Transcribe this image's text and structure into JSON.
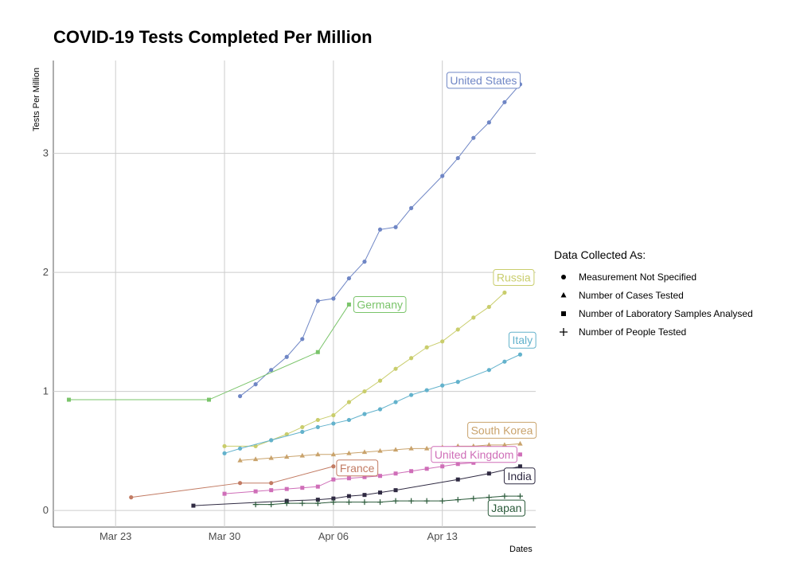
{
  "chart_data": {
    "type": "line",
    "title": "COVID-19 Tests Completed Per Million",
    "ylabel": "Tests Per Million",
    "xlabel": "Dates",
    "xlim": [
      "2020-03-19",
      "2020-04-19"
    ],
    "ylim": [
      -0.14,
      3.78
    ],
    "x_ticks": [
      {
        "date": "2020-03-23",
        "label": "Mar 23"
      },
      {
        "date": "2020-03-30",
        "label": "Mar 30"
      },
      {
        "date": "2020-04-06",
        "label": "Apr 06"
      },
      {
        "date": "2020-04-13",
        "label": "Apr 13"
      }
    ],
    "y_ticks": [
      0,
      1,
      2,
      3
    ],
    "grid": true,
    "legend": {
      "title": "Data Collected As:",
      "position": "right",
      "entries": [
        {
          "label": "Measurement Not Specified",
          "shape": "circle"
        },
        {
          "label": "Number of Cases Tested",
          "shape": "triangle"
        },
        {
          "label": "Number of Laboratory Samples Analysed",
          "shape": "square"
        },
        {
          "label": "Number of People Tested",
          "shape": "plus"
        }
      ]
    },
    "series": [
      {
        "name": "United States",
        "color": "#6f86c5",
        "shape": "circle",
        "x": [
          "2020-03-31",
          "2020-04-01",
          "2020-04-02",
          "2020-04-03",
          "2020-04-04",
          "2020-04-05",
          "2020-04-06",
          "2020-04-07",
          "2020-04-08",
          "2020-04-09",
          "2020-04-10",
          "2020-04-11",
          "2020-04-13",
          "2020-04-14",
          "2020-04-15",
          "2020-04-16",
          "2020-04-17",
          "2020-04-18"
        ],
        "y": [
          0.96,
          1.06,
          1.18,
          1.29,
          1.44,
          1.76,
          1.78,
          1.95,
          2.09,
          2.36,
          2.38,
          2.54,
          2.81,
          2.96,
          3.13,
          3.26,
          3.43,
          3.58
        ]
      },
      {
        "name": "Germany",
        "color": "#7ac46a",
        "shape": "square",
        "x": [
          "2020-03-20",
          "2020-03-29",
          "2020-04-05",
          "2020-04-07"
        ],
        "y": [
          0.93,
          0.93,
          1.33,
          1.73
        ]
      },
      {
        "name": "Russia",
        "color": "#c9cd6c",
        "shape": "circle",
        "x": [
          "2020-03-30",
          "2020-04-01",
          "2020-04-02",
          "2020-04-03",
          "2020-04-04",
          "2020-04-05",
          "2020-04-06",
          "2020-04-07",
          "2020-04-08",
          "2020-04-09",
          "2020-04-10",
          "2020-04-11",
          "2020-04-12",
          "2020-04-13",
          "2020-04-14",
          "2020-04-15",
          "2020-04-16",
          "2020-04-17"
        ],
        "y": [
          0.54,
          0.54,
          0.59,
          0.64,
          0.7,
          0.76,
          0.8,
          0.91,
          1.0,
          1.09,
          1.19,
          1.28,
          1.37,
          1.42,
          1.52,
          1.62,
          1.71,
          1.83
        ]
      },
      {
        "name": "Italy",
        "color": "#63b2cc",
        "shape": "circle",
        "x": [
          "2020-03-30",
          "2020-03-31",
          "2020-04-02",
          "2020-04-04",
          "2020-04-05",
          "2020-04-06",
          "2020-04-07",
          "2020-04-08",
          "2020-04-09",
          "2020-04-10",
          "2020-04-11",
          "2020-04-12",
          "2020-04-13",
          "2020-04-14",
          "2020-04-16",
          "2020-04-17",
          "2020-04-18"
        ],
        "y": [
          0.48,
          0.52,
          0.59,
          0.66,
          0.7,
          0.73,
          0.76,
          0.81,
          0.85,
          0.91,
          0.97,
          1.01,
          1.05,
          1.08,
          1.18,
          1.25,
          1.31
        ]
      },
      {
        "name": "South Korea",
        "color": "#c9a36c",
        "shape": "triangle",
        "x": [
          "2020-03-31",
          "2020-04-01",
          "2020-04-02",
          "2020-04-03",
          "2020-04-04",
          "2020-04-05",
          "2020-04-06",
          "2020-04-07",
          "2020-04-08",
          "2020-04-09",
          "2020-04-10",
          "2020-04-11",
          "2020-04-12",
          "2020-04-13",
          "2020-04-14",
          "2020-04-15",
          "2020-04-16",
          "2020-04-17",
          "2020-04-18"
        ],
        "y": [
          0.42,
          0.43,
          0.44,
          0.45,
          0.46,
          0.47,
          0.47,
          0.48,
          0.49,
          0.5,
          0.51,
          0.52,
          0.52,
          0.53,
          0.54,
          0.54,
          0.55,
          0.55,
          0.56
        ]
      },
      {
        "name": "France",
        "color": "#c27b63",
        "shape": "circle",
        "x": [
          "2020-03-24",
          "2020-03-31",
          "2020-04-02",
          "2020-04-06"
        ],
        "y": [
          0.11,
          0.23,
          0.23,
          0.37
        ]
      },
      {
        "name": "United Kingdom",
        "color": "#cf6eb8",
        "shape": "square",
        "x": [
          "2020-03-30",
          "2020-04-01",
          "2020-04-02",
          "2020-04-03",
          "2020-04-04",
          "2020-04-05",
          "2020-04-06",
          "2020-04-07",
          "2020-04-08",
          "2020-04-09",
          "2020-04-10",
          "2020-04-11",
          "2020-04-12",
          "2020-04-13",
          "2020-04-14",
          "2020-04-15",
          "2020-04-16",
          "2020-04-17",
          "2020-04-18"
        ],
        "y": [
          0.14,
          0.16,
          0.17,
          0.18,
          0.19,
          0.2,
          0.26,
          0.27,
          0.28,
          0.29,
          0.31,
          0.33,
          0.35,
          0.37,
          0.39,
          0.4,
          0.42,
          0.44,
          0.47
        ]
      },
      {
        "name": "India",
        "color": "#2f2a42",
        "shape": "square",
        "x": [
          "2020-03-28",
          "2020-04-03",
          "2020-04-05",
          "2020-04-06",
          "2020-04-07",
          "2020-04-08",
          "2020-04-09",
          "2020-04-10",
          "2020-04-14",
          "2020-04-16",
          "2020-04-18"
        ],
        "y": [
          0.04,
          0.08,
          0.09,
          0.1,
          0.12,
          0.13,
          0.15,
          0.17,
          0.26,
          0.31,
          0.37
        ]
      },
      {
        "name": "Japan",
        "color": "#2a5a3a",
        "shape": "plus",
        "x": [
          "2020-04-01",
          "2020-04-02",
          "2020-04-03",
          "2020-04-04",
          "2020-04-05",
          "2020-04-06",
          "2020-04-07",
          "2020-04-08",
          "2020-04-09",
          "2020-04-10",
          "2020-04-11",
          "2020-04-12",
          "2020-04-13",
          "2020-04-14",
          "2020-04-15",
          "2020-04-16",
          "2020-04-17",
          "2020-04-18"
        ],
        "y": [
          0.05,
          0.05,
          0.06,
          0.06,
          0.06,
          0.07,
          0.07,
          0.07,
          0.07,
          0.08,
          0.08,
          0.08,
          0.08,
          0.09,
          0.1,
          0.11,
          0.12,
          0.12
        ]
      }
    ]
  }
}
